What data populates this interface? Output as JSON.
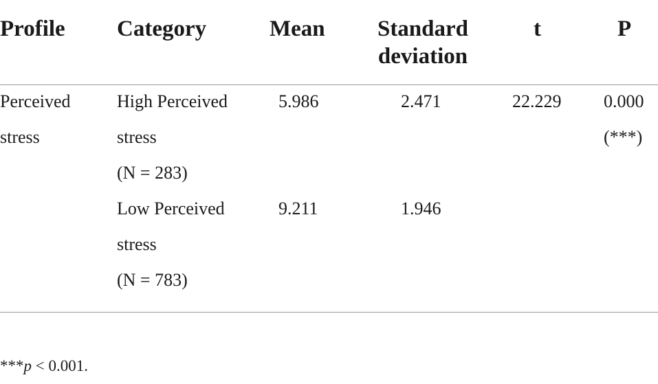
{
  "table": {
    "header": [
      "Profile",
      "Category",
      "Mean",
      "Standard deviation",
      "t",
      "P"
    ],
    "profile": "Perceived stress",
    "rows": [
      {
        "category": "High Perceived stress",
        "n": "(N = 283)",
        "mean": "5.986",
        "sd": "2.471"
      },
      {
        "category": "Low Perceived stress",
        "n": "(N = 783)",
        "mean": "9.211",
        "sd": "1.946"
      }
    ],
    "t": "22.229",
    "p": "0.000",
    "p_note": "(***)"
  },
  "footnote": {
    "stars": "***",
    "symbol": "p",
    "text": "< 0.001."
  }
}
